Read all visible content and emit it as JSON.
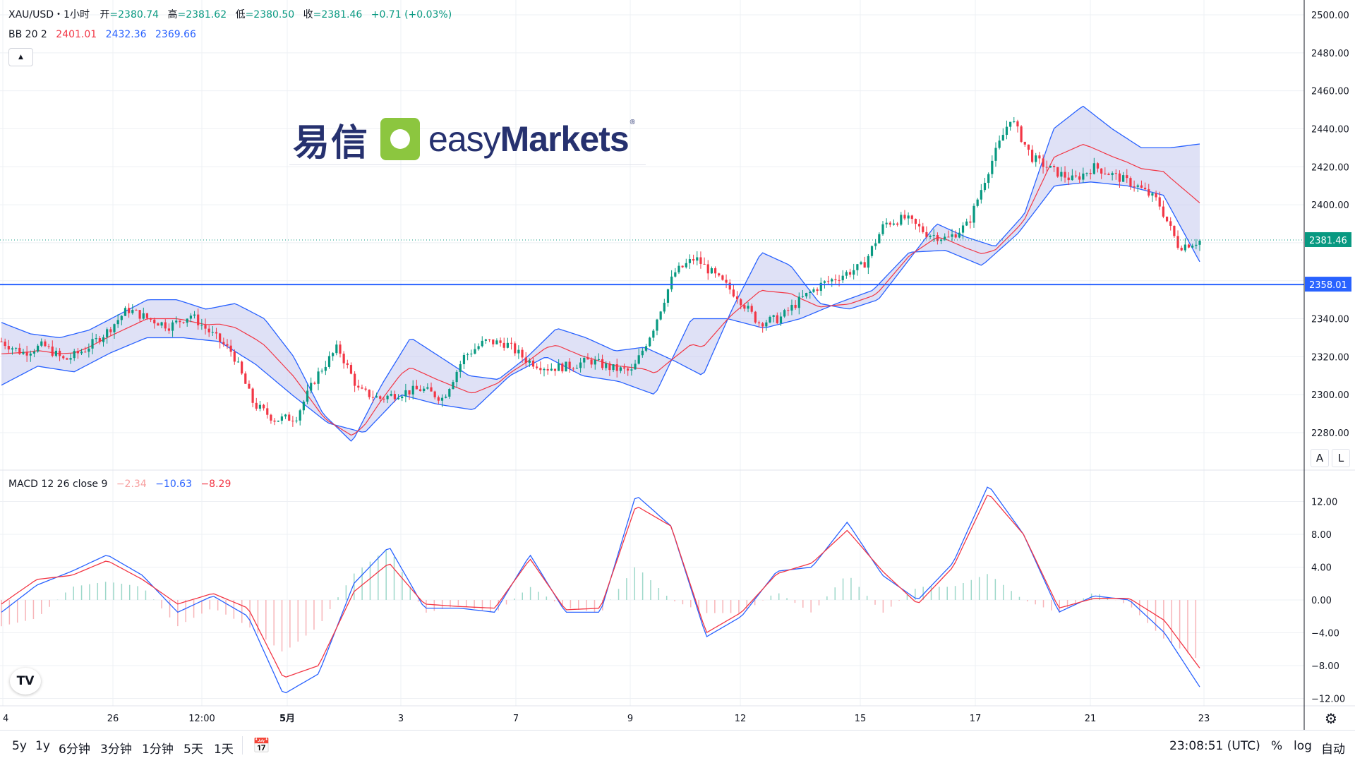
{
  "legend": {
    "symbol": "XAU/USD・1小时",
    "open_label": "开",
    "open": "=2380.74",
    "high_label": "高",
    "high": "=2381.62",
    "low_label": "低",
    "low": "=2380.50",
    "close_label": "收",
    "close": "=2381.46",
    "change": "+0.71 (+0.03%)",
    "bb_label": "BB 20 2",
    "bb_mid": "2401.01",
    "bb_upper": "2432.36",
    "bb_lower": "2369.66",
    "collapse_icon": "▲",
    "macd_label": "MACD 12 26 close 9",
    "macd_hist": "−2.34",
    "macd_line": "−10.63",
    "macd_signal": "−8.29"
  },
  "logo": {
    "cn": "易信",
    "en_light": "easy",
    "en_bold": "Markets",
    "reg": "®"
  },
  "price_axis": {
    "ticks": [
      "2500.00",
      "2480.00",
      "2460.00",
      "2440.00",
      "2420.00",
      "2400.00",
      "2380.00",
      "2360.00",
      "2340.00",
      "2320.00",
      "2300.00",
      "2280.00"
    ],
    "current_price": "2381.46",
    "hline_price": "2358.01"
  },
  "macd_axis": {
    "ticks": [
      "12.00",
      "8.00",
      "4.00",
      "0.00",
      "−4.00",
      "−8.00",
      "−12.00"
    ]
  },
  "axis_buttons": {
    "auto": "A",
    "log": "L"
  },
  "time_axis": {
    "labels": [
      "4",
      "26",
      "12:00",
      "5月",
      "3",
      "7",
      "9",
      "12",
      "15",
      "17",
      "21",
      "23"
    ]
  },
  "bottom_bar": {
    "ranges": [
      "5y",
      "1y",
      "6分钟",
      "3分钟",
      "1分钟",
      "5天",
      "1天"
    ],
    "goto_icon": "calendar-icon",
    "clock": "23:08:51 (UTC)",
    "percent": "%",
    "log": "log",
    "auto": "自动"
  },
  "colors": {
    "up": "#089981",
    "down": "#f23645",
    "bb_basis": "#f23645",
    "bb_band": "#2962ff",
    "bb_fill": "#c5c9ef",
    "hline": "#2962ff",
    "macd": "#2962ff",
    "signal": "#f23645"
  },
  "chart_data": [
    {
      "type": "candlestick",
      "title": "XAU/USD・1小时",
      "ylim": [
        2270,
        2505
      ],
      "x_labels": [
        "4",
        "26",
        "12:00",
        "5月",
        "3",
        "7",
        "9",
        "12",
        "15",
        "17",
        "21",
        "23"
      ],
      "close_path": [
        2328,
        2322,
        2326,
        2318,
        2324,
        2333,
        2345,
        2340,
        2336,
        2342,
        2332,
        2322,
        2295,
        2287,
        2288,
        2310,
        2325,
        2302,
        2298,
        2301,
        2303,
        2298,
        2320,
        2328,
        2327,
        2318,
        2314,
        2315,
        2318,
        2314,
        2312,
        2335,
        2364,
        2372,
        2362,
        2352,
        2338,
        2340,
        2350,
        2358,
        2363,
        2368,
        2390,
        2393,
        2385,
        2382,
        2390,
        2420,
        2446,
        2425,
        2418,
        2413,
        2420,
        2415,
        2410,
        2402,
        2378,
        2381
      ],
      "bb_upper_path": [
        2338,
        2332,
        2330,
        2334,
        2342,
        2350,
        2350,
        2345,
        2348,
        2340,
        2320,
        2290,
        2275,
        2305,
        2330,
        2320,
        2310,
        2308,
        2320,
        2335,
        2330,
        2323,
        2325,
        2318,
        2310,
        2345,
        2375,
        2368,
        2348,
        2345,
        2350,
        2370,
        2390,
        2383,
        2378,
        2395,
        2440,
        2452,
        2440,
        2430,
        2430,
        2432
      ],
      "bb_lower_path": [
        2305,
        2315,
        2312,
        2322,
        2330,
        2330,
        2328,
        2316,
        2300,
        2285,
        2280,
        2300,
        2295,
        2292,
        2310,
        2320,
        2310,
        2307,
        2300,
        2340,
        2340,
        2335,
        2340,
        2348,
        2355,
        2375,
        2376,
        2368,
        2385,
        2410,
        2412,
        2410,
        2405,
        2370
      ],
      "current_price": 2381.46,
      "horizontal_line": 2358.01,
      "bollinger": {
        "period": 20,
        "stddev": 2,
        "basis": 2401.01,
        "upper": 2432.36,
        "lower": 2369.66
      }
    },
    {
      "type": "line",
      "title": "MACD 12 26 close 9",
      "ylim": [
        -12.5,
        14.5
      ],
      "series": [
        {
          "name": "MACD",
          "values": [
            -1.5,
            1.8,
            3.5,
            5.5,
            3.0,
            -1.5,
            0.5,
            -2.0,
            -11.5,
            -9.0,
            2.0,
            6.5,
            -1.0,
            -1.0,
            -1.5,
            5.5,
            -1.5,
            -1.5,
            12.8,
            9.0,
            -4.5,
            -2.0,
            3.5,
            4.0,
            9.5,
            3.0,
            0.0,
            4.5,
            14.0,
            8.0,
            -1.5,
            0.5,
            0.0,
            -4.0,
            -10.6
          ]
        },
        {
          "name": "Signal",
          "values": [
            -0.5,
            2.5,
            3.0,
            4.8,
            2.5,
            -0.5,
            0.8,
            -1.0,
            -9.5,
            -8.0,
            1.0,
            4.5,
            -0.5,
            -0.8,
            -1.0,
            5.0,
            -1.2,
            -1.0,
            11.5,
            9.0,
            -4.0,
            -1.5,
            3.2,
            4.5,
            8.5,
            3.5,
            -0.5,
            4.0,
            13.0,
            8.0,
            -1.0,
            0.2,
            0.2,
            -2.5,
            -8.3
          ]
        }
      ],
      "histogram_range": [
        -4.0,
        4.0
      ]
    }
  ]
}
